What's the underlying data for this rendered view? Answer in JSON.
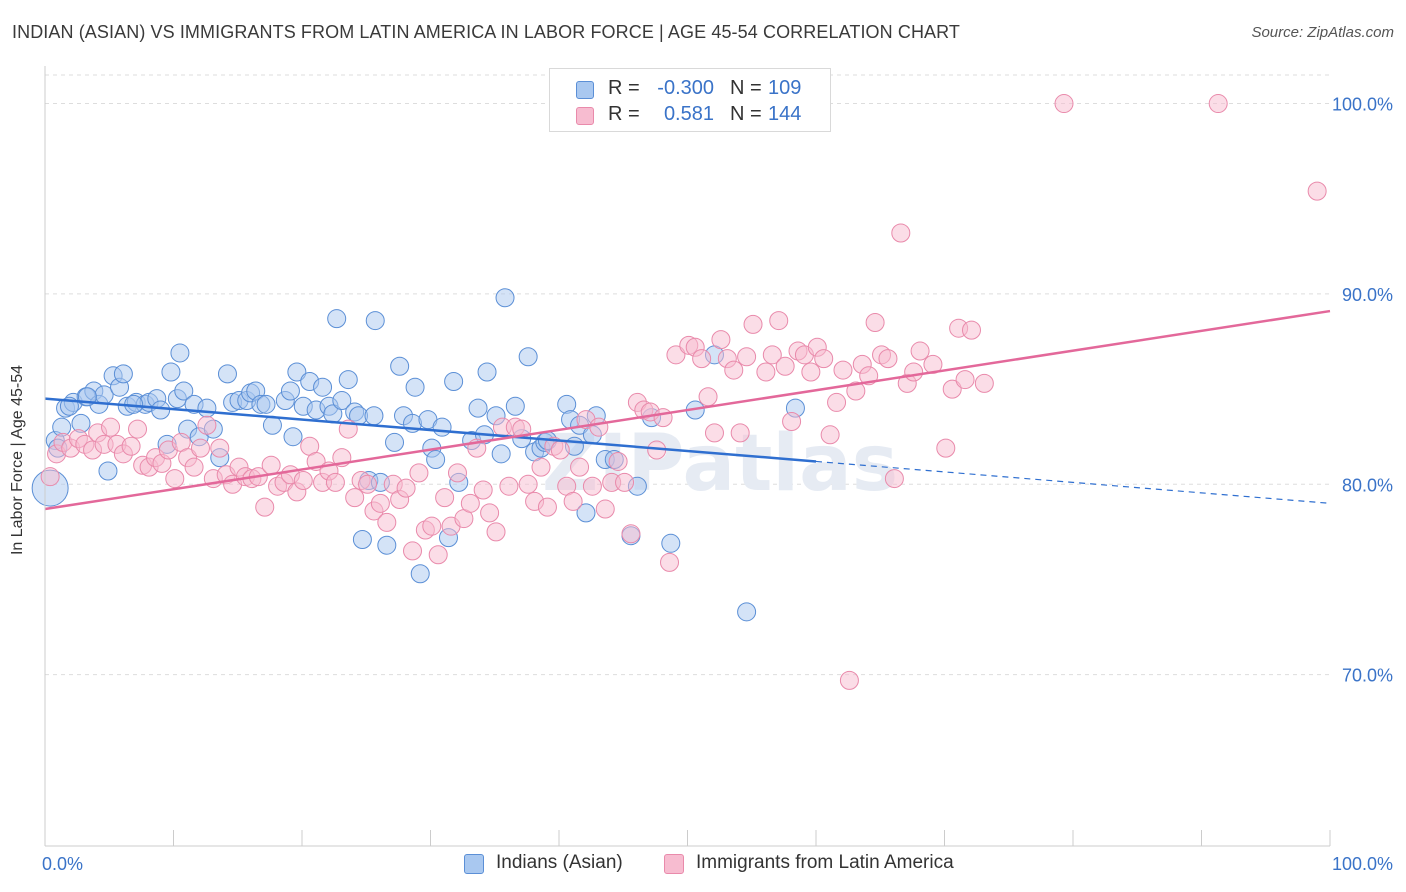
{
  "title": "INDIAN (ASIAN) VS IMMIGRANTS FROM LATIN AMERICA IN LABOR FORCE | AGE 45-54 CORRELATION CHART",
  "source": "Source: ZipAtlas.com",
  "watermark": "ZIPatlas",
  "legend": {
    "rows": [
      {
        "r_label": "R =",
        "r_value": "-0.300",
        "n_label": "N =",
        "n_value": "109"
      },
      {
        "r_label": "R =",
        "r_value": "0.581",
        "n_label": "N =",
        "n_value": "144"
      }
    ]
  },
  "bottom_legend": [
    "Indians (Asian)",
    "Immigrants from Latin America"
  ],
  "colors": {
    "blue_fill": "#a9c8f0",
    "blue_stroke": "#5b8fd6",
    "blue_line": "#2f6fd0",
    "pink_fill": "#f7bcd0",
    "pink_stroke": "#e98aab",
    "pink_line": "#e3689a",
    "axis_text": "#3a73c8",
    "grid": "#dddddd"
  },
  "chart_data": {
    "type": "scatter",
    "xlabel": "",
    "ylabel": "In Labor Force | Age 45-54",
    "xlim": [
      0,
      100
    ],
    "ylim": [
      61,
      101.5
    ],
    "x_tick_labels": [
      "0.0%",
      "100.0%"
    ],
    "y_ticks": [
      70,
      80,
      90,
      100
    ],
    "y_tick_labels": [
      "70.0%",
      "80.0%",
      "90.0%",
      "100.0%"
    ],
    "grid": true,
    "legend_position": "top-center",
    "series": [
      {
        "name": "Indians (Asian)",
        "color": "#a9c8f0",
        "trend": {
          "x0": 0,
          "y0": 84.5,
          "x1": 60,
          "y1": 81.2,
          "dash_to_x": 100,
          "dash_to_y": 79.0
        },
        "points": [
          [
            0.4,
            79.8
          ],
          [
            0.8,
            82.3
          ],
          [
            1.3,
            83.0
          ],
          [
            1.6,
            84.0
          ],
          [
            2.2,
            84.3
          ],
          [
            2.8,
            83.2
          ],
          [
            3.2,
            84.6
          ],
          [
            3.8,
            84.9
          ],
          [
            4.2,
            84.2
          ],
          [
            4.6,
            84.7
          ],
          [
            5.3,
            85.7
          ],
          [
            5.8,
            85.1
          ],
          [
            6.1,
            85.8
          ],
          [
            6.4,
            84.1
          ],
          [
            7.1,
            84.3
          ],
          [
            7.8,
            84.2
          ],
          [
            8.1,
            84.3
          ],
          [
            8.7,
            84.5
          ],
          [
            9.0,
            83.9
          ],
          [
            9.5,
            82.1
          ],
          [
            9.8,
            85.9
          ],
          [
            10.3,
            84.5
          ],
          [
            10.8,
            84.9
          ],
          [
            10.5,
            86.9
          ],
          [
            11.1,
            82.9
          ],
          [
            11.6,
            84.2
          ],
          [
            12.0,
            82.5
          ],
          [
            12.6,
            84.0
          ],
          [
            13.1,
            82.9
          ],
          [
            13.6,
            81.4
          ],
          [
            14.2,
            85.8
          ],
          [
            14.6,
            84.3
          ],
          [
            15.1,
            84.4
          ],
          [
            15.7,
            84.4
          ],
          [
            16.0,
            84.8
          ],
          [
            16.4,
            84.9
          ],
          [
            16.8,
            84.2
          ],
          [
            17.2,
            84.2
          ],
          [
            17.7,
            83.1
          ],
          [
            18.7,
            84.4
          ],
          [
            19.1,
            84.9
          ],
          [
            19.3,
            82.5
          ],
          [
            19.6,
            85.9
          ],
          [
            20.1,
            84.1
          ],
          [
            20.6,
            85.4
          ],
          [
            21.1,
            83.9
          ],
          [
            21.6,
            85.1
          ],
          [
            22.1,
            84.1
          ],
          [
            22.4,
            83.7
          ],
          [
            23.1,
            84.4
          ],
          [
            23.6,
            85.5
          ],
          [
            22.7,
            88.7
          ],
          [
            24.1,
            83.8
          ],
          [
            24.4,
            83.6
          ],
          [
            25.2,
            80.2
          ],
          [
            24.7,
            77.1
          ],
          [
            25.6,
            83.6
          ],
          [
            26.1,
            80.1
          ],
          [
            26.6,
            76.8
          ],
          [
            25.7,
            88.6
          ],
          [
            27.2,
            82.2
          ],
          [
            27.6,
            86.2
          ],
          [
            27.9,
            83.6
          ],
          [
            28.6,
            83.2
          ],
          [
            28.8,
            85.1
          ],
          [
            29.2,
            75.3
          ],
          [
            29.8,
            83.4
          ],
          [
            30.1,
            81.9
          ],
          [
            30.4,
            81.3
          ],
          [
            30.9,
            83.0
          ],
          [
            31.4,
            77.2
          ],
          [
            31.8,
            85.4
          ],
          [
            32.2,
            80.1
          ],
          [
            33.2,
            82.3
          ],
          [
            33.7,
            84.0
          ],
          [
            34.2,
            82.6
          ],
          [
            34.4,
            85.9
          ],
          [
            35.1,
            83.6
          ],
          [
            35.5,
            81.6
          ],
          [
            35.8,
            89.8
          ],
          [
            36.6,
            84.1
          ],
          [
            37.1,
            82.4
          ],
          [
            37.6,
            86.7
          ],
          [
            38.1,
            81.7
          ],
          [
            38.6,
            81.9
          ],
          [
            38.9,
            82.2
          ],
          [
            39.1,
            82.3
          ],
          [
            40.6,
            84.2
          ],
          [
            40.9,
            83.4
          ],
          [
            41.2,
            82.0
          ],
          [
            41.6,
            83.1
          ],
          [
            42.1,
            78.5
          ],
          [
            42.6,
            82.6
          ],
          [
            42.9,
            83.6
          ],
          [
            43.6,
            81.3
          ],
          [
            44.3,
            81.3
          ],
          [
            45.6,
            77.3
          ],
          [
            46.1,
            79.9
          ],
          [
            47.2,
            83.5
          ],
          [
            48.7,
            76.9
          ],
          [
            50.6,
            83.9
          ],
          [
            52.1,
            86.8
          ],
          [
            54.6,
            73.3
          ],
          [
            58.4,
            84.0
          ],
          [
            1.0,
            81.9
          ],
          [
            1.9,
            84.1
          ],
          [
            3.3,
            84.6
          ],
          [
            4.9,
            80.7
          ],
          [
            6.9,
            84.2
          ]
        ]
      },
      {
        "name": "Immigrants from Latin America",
        "color": "#f7bcd0",
        "trend": {
          "x0": 0,
          "y0": 78.7,
          "x1": 100,
          "y1": 89.1
        },
        "points": [
          [
            0.4,
            80.4
          ],
          [
            0.9,
            81.6
          ],
          [
            1.4,
            82.2
          ],
          [
            2.0,
            81.9
          ],
          [
            2.6,
            82.4
          ],
          [
            3.1,
            82.1
          ],
          [
            3.7,
            81.8
          ],
          [
            4.1,
            82.7
          ],
          [
            4.6,
            82.1
          ],
          [
            5.1,
            83.0
          ],
          [
            5.6,
            82.1
          ],
          [
            6.1,
            81.6
          ],
          [
            6.7,
            82.0
          ],
          [
            7.2,
            82.9
          ],
          [
            7.6,
            81.0
          ],
          [
            8.1,
            80.9
          ],
          [
            8.6,
            81.4
          ],
          [
            9.1,
            81.1
          ],
          [
            9.6,
            81.8
          ],
          [
            10.1,
            80.3
          ],
          [
            10.6,
            82.2
          ],
          [
            11.1,
            81.4
          ],
          [
            11.6,
            80.9
          ],
          [
            12.1,
            81.9
          ],
          [
            12.6,
            83.1
          ],
          [
            13.1,
            80.3
          ],
          [
            13.6,
            81.9
          ],
          [
            14.1,
            80.5
          ],
          [
            14.6,
            80.0
          ],
          [
            15.1,
            80.9
          ],
          [
            15.6,
            80.4
          ],
          [
            16.1,
            80.3
          ],
          [
            16.6,
            80.4
          ],
          [
            17.1,
            78.8
          ],
          [
            17.6,
            81.0
          ],
          [
            18.1,
            79.9
          ],
          [
            18.6,
            80.1
          ],
          [
            19.1,
            80.5
          ],
          [
            19.6,
            79.6
          ],
          [
            20.1,
            80.2
          ],
          [
            20.6,
            82.0
          ],
          [
            21.1,
            81.2
          ],
          [
            21.6,
            80.1
          ],
          [
            22.1,
            80.7
          ],
          [
            22.6,
            80.1
          ],
          [
            23.1,
            81.4
          ],
          [
            23.6,
            82.9
          ],
          [
            24.1,
            79.3
          ],
          [
            24.6,
            80.2
          ],
          [
            25.1,
            80.0
          ],
          [
            25.6,
            78.6
          ],
          [
            26.1,
            79.0
          ],
          [
            26.6,
            78.0
          ],
          [
            27.1,
            80.0
          ],
          [
            27.6,
            79.2
          ],
          [
            28.1,
            79.8
          ],
          [
            28.6,
            76.5
          ],
          [
            29.1,
            80.6
          ],
          [
            29.6,
            77.6
          ],
          [
            30.1,
            77.8
          ],
          [
            30.6,
            76.3
          ],
          [
            31.1,
            79.3
          ],
          [
            31.6,
            77.8
          ],
          [
            32.1,
            80.6
          ],
          [
            32.6,
            78.2
          ],
          [
            33.1,
            79.0
          ],
          [
            33.6,
            81.9
          ],
          [
            34.1,
            79.7
          ],
          [
            34.6,
            78.5
          ],
          [
            35.1,
            77.5
          ],
          [
            35.6,
            83.0
          ],
          [
            36.1,
            79.9
          ],
          [
            36.6,
            83.0
          ],
          [
            37.1,
            82.9
          ],
          [
            37.6,
            80.0
          ],
          [
            38.1,
            79.1
          ],
          [
            38.6,
            80.9
          ],
          [
            39.1,
            78.8
          ],
          [
            39.6,
            82.0
          ],
          [
            40.1,
            81.8
          ],
          [
            40.6,
            79.9
          ],
          [
            41.1,
            79.1
          ],
          [
            41.6,
            80.9
          ],
          [
            42.1,
            83.4
          ],
          [
            42.6,
            79.9
          ],
          [
            43.1,
            83.0
          ],
          [
            43.6,
            78.7
          ],
          [
            44.1,
            80.1
          ],
          [
            44.6,
            81.2
          ],
          [
            45.1,
            80.1
          ],
          [
            45.6,
            77.4
          ],
          [
            46.1,
            84.3
          ],
          [
            46.6,
            83.9
          ],
          [
            47.1,
            83.8
          ],
          [
            47.6,
            81.8
          ],
          [
            48.1,
            83.5
          ],
          [
            48.6,
            75.9
          ],
          [
            49.1,
            86.8
          ],
          [
            50.1,
            87.3
          ],
          [
            50.6,
            87.2
          ],
          [
            51.1,
            86.6
          ],
          [
            51.6,
            84.6
          ],
          [
            52.1,
            82.7
          ],
          [
            52.6,
            87.6
          ],
          [
            53.1,
            86.6
          ],
          [
            53.6,
            86.0
          ],
          [
            54.1,
            82.7
          ],
          [
            54.6,
            86.7
          ],
          [
            55.1,
            88.4
          ],
          [
            56.1,
            85.9
          ],
          [
            56.6,
            86.8
          ],
          [
            57.1,
            88.6
          ],
          [
            57.6,
            86.2
          ],
          [
            58.1,
            83.3
          ],
          [
            58.6,
            87.0
          ],
          [
            59.1,
            86.8
          ],
          [
            59.6,
            85.9
          ],
          [
            60.1,
            87.2
          ],
          [
            60.6,
            86.6
          ],
          [
            61.1,
            82.6
          ],
          [
            61.6,
            84.3
          ],
          [
            62.1,
            86.0
          ],
          [
            62.6,
            69.7
          ],
          [
            63.1,
            84.9
          ],
          [
            63.6,
            86.3
          ],
          [
            64.1,
            85.7
          ],
          [
            64.6,
            88.5
          ],
          [
            65.1,
            86.8
          ],
          [
            65.6,
            86.6
          ],
          [
            66.1,
            80.3
          ],
          [
            66.6,
            93.2
          ],
          [
            67.1,
            85.3
          ],
          [
            67.6,
            85.9
          ],
          [
            68.1,
            87.0
          ],
          [
            69.1,
            86.3
          ],
          [
            70.1,
            81.9
          ],
          [
            70.6,
            85.0
          ],
          [
            71.1,
            88.2
          ],
          [
            71.6,
            85.5
          ],
          [
            72.1,
            88.1
          ],
          [
            73.1,
            85.3
          ],
          [
            79.3,
            100.0
          ],
          [
            91.3,
            100.0
          ],
          [
            99.0,
            95.4
          ]
        ]
      }
    ]
  }
}
